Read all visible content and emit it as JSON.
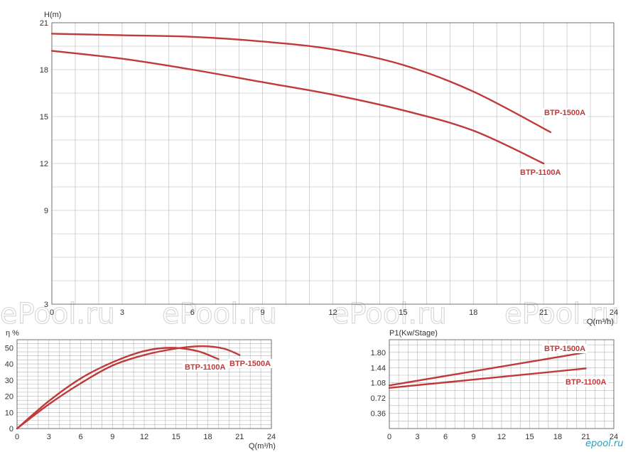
{
  "colors": {
    "curve": "#c0393b",
    "grid": "#b5b5b5",
    "axis": "#555555",
    "label_bg": "#ffffff"
  },
  "watermark": "ePool.ru",
  "logo": "epool.ru",
  "chart_data": [
    {
      "type": "line",
      "ylabel": "H(m)",
      "xlabel": "Q(m³/h)",
      "xlim": [
        0,
        24
      ],
      "ylim": [
        3,
        21
      ],
      "xticks": [
        0,
        3,
        6,
        9,
        12,
        15,
        18,
        21,
        24
      ],
      "yticks": [
        3,
        9,
        12,
        15,
        18,
        21
      ],
      "series": [
        {
          "name": "BTP-1500A",
          "x": [
            0,
            3,
            6,
            9,
            12,
            15,
            18,
            21.3
          ],
          "y": [
            20.3,
            20.2,
            20.1,
            19.8,
            19.3,
            18.3,
            16.6,
            14.0
          ]
        },
        {
          "name": "BTP-1100A",
          "x": [
            0,
            3,
            6,
            9,
            12,
            15,
            18,
            21
          ],
          "y": [
            19.2,
            18.7,
            18.0,
            17.2,
            16.4,
            15.4,
            14.1,
            12.0
          ]
        }
      ]
    },
    {
      "type": "line",
      "ylabel": "η %",
      "xlabel": "Q(m³/h)",
      "xlim": [
        0,
        24
      ],
      "ylim": [
        0,
        55
      ],
      "xticks": [
        0,
        3,
        6,
        9,
        12,
        15,
        18,
        21,
        24
      ],
      "yticks": [
        0,
        10,
        20,
        30,
        40,
        50
      ],
      "series": [
        {
          "name": "BTP-1100A",
          "x": [
            0,
            3,
            6,
            9,
            12,
            14.5,
            17,
            19
          ],
          "y": [
            0,
            17,
            31,
            41,
            48,
            50,
            48,
            43
          ]
        },
        {
          "name": "BTP-1500A",
          "x": [
            0,
            3,
            6,
            9,
            12,
            15,
            17.5,
            19.5,
            21
          ],
          "y": [
            0,
            15,
            28,
            39,
            45.5,
            49.5,
            51,
            49.5,
            45.5
          ]
        }
      ]
    },
    {
      "type": "line",
      "ylabel": "P1(Kw/Stage)",
      "xlabel": "",
      "xlim": [
        0,
        24
      ],
      "ylim": [
        0,
        2.1
      ],
      "xticks": [
        0,
        3,
        6,
        9,
        12,
        15,
        18,
        21,
        24
      ],
      "yticks": [
        0.36,
        0.72,
        1.08,
        1.44,
        1.8
      ],
      "ytick_labels": [
        "0.36",
        "0.72",
        "1.08",
        "1.44",
        "1.80"
      ],
      "series": [
        {
          "name": "BTP-1500A",
          "x": [
            0,
            21
          ],
          "y": [
            1.02,
            1.8
          ]
        },
        {
          "name": "BTP-1100A",
          "x": [
            0,
            21
          ],
          "y": [
            0.96,
            1.42
          ]
        }
      ]
    }
  ]
}
